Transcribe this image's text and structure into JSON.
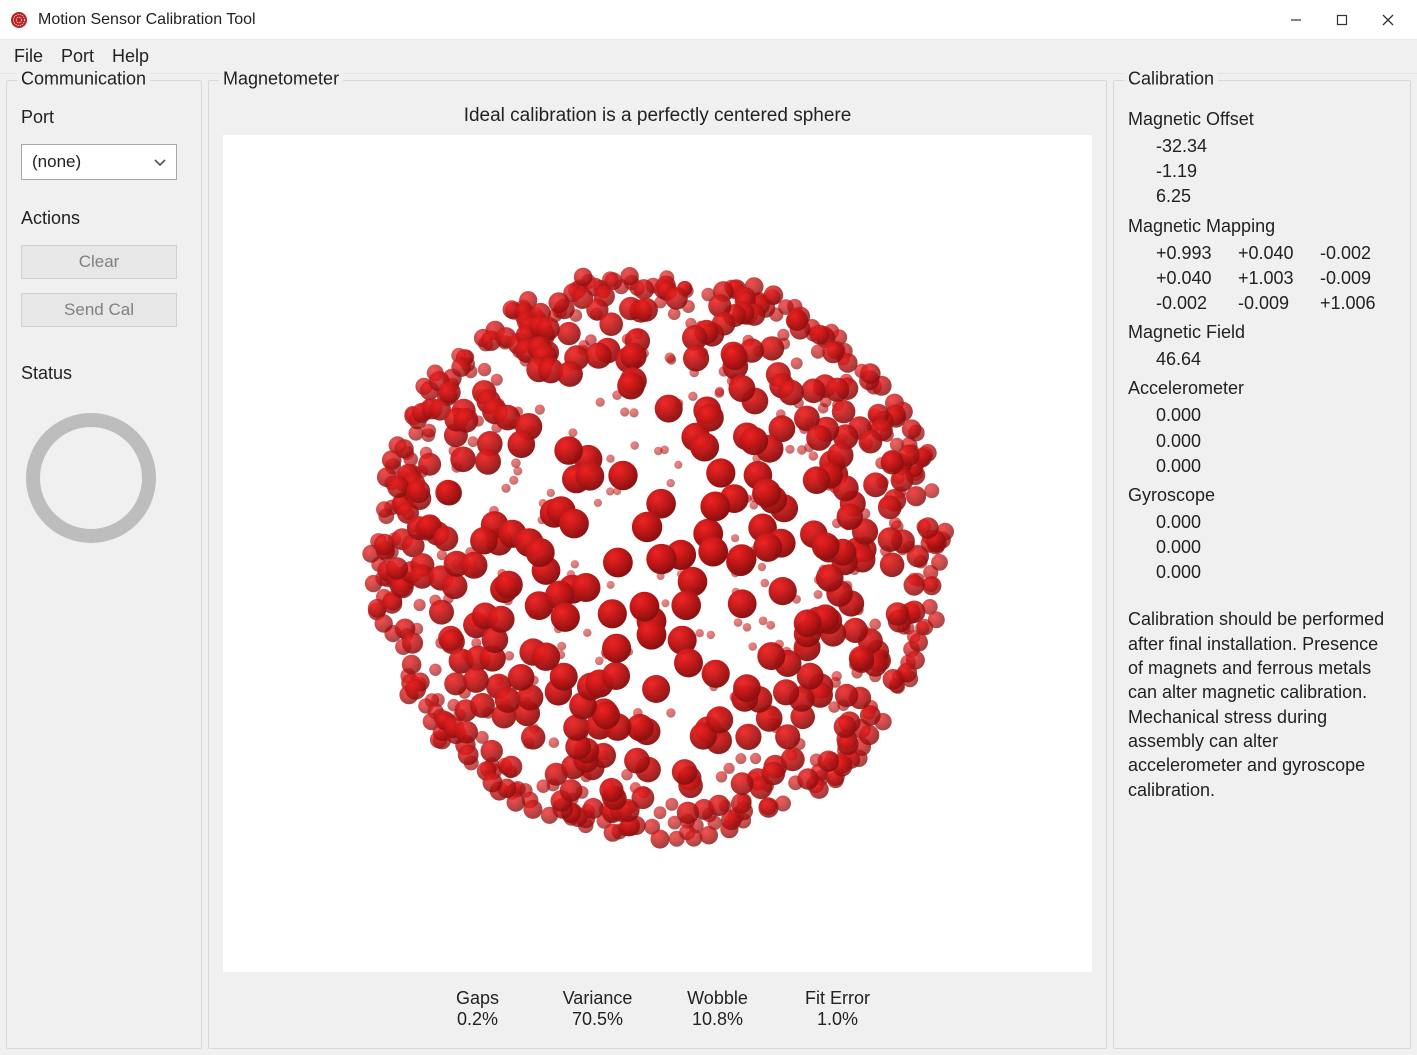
{
  "window": {
    "title": "Motion Sensor Calibration Tool",
    "icon_color": "#b62323"
  },
  "menu": {
    "items": [
      "File",
      "Port",
      "Help"
    ]
  },
  "communication": {
    "group_title": "Communication",
    "port_label": "Port",
    "port_value": "(none)",
    "actions_label": "Actions",
    "clear_label": "Clear",
    "send_cal_label": "Send Cal",
    "status_label": "Status",
    "status_ring_color": "#bdbdbd",
    "status_ring_stroke": 14
  },
  "magnetometer": {
    "group_title": "Magnetometer",
    "message": "Ideal calibration is a perfectly centered sphere",
    "stats_labels": {
      "gaps": "Gaps",
      "variance": "Variance",
      "wobble": "Wobble",
      "fit_error": "Fit Error"
    },
    "stats_values": {
      "gaps": "0.2%",
      "variance": "70.5%",
      "wobble": "10.8%",
      "fit_error": "1.0%"
    },
    "viz": {
      "type": "scatter-3d-sphere",
      "background_color": "#ffffff",
      "sphere_radius": 1.0,
      "point_count": 900,
      "point_color_base": "#c81818",
      "point_color_dark": "#8a0f0f",
      "point_color_light": "#ef2222",
      "rand_seed": 12345,
      "size_front": 15,
      "size_back": 4
    }
  },
  "calibration": {
    "group_title": "Calibration",
    "magnetic_offset_label": "Magnetic Offset",
    "magnetic_offset": [
      "-32.34",
      "-1.19",
      "6.25"
    ],
    "magnetic_mapping_label": "Magnetic Mapping",
    "magnetic_mapping": [
      [
        "+0.993",
        "+0.040",
        "-0.002"
      ],
      [
        "+0.040",
        "+1.003",
        "-0.009"
      ],
      [
        "-0.002",
        "-0.009",
        "+1.006"
      ]
    ],
    "magnetic_field_label": "Magnetic Field",
    "magnetic_field": [
      "46.64"
    ],
    "accelerometer_label": "Accelerometer",
    "accelerometer": [
      "0.000",
      "0.000",
      "0.000"
    ],
    "gyroscope_label": "Gyroscope",
    "gyroscope": [
      "0.000",
      "0.000",
      "0.000"
    ],
    "note": "Calibration should be performed after final installation.  Presence of magnets and ferrous metals can alter magnetic calibration. Mechanical stress during assembly can alter accelerometer and gyroscope calibration."
  }
}
